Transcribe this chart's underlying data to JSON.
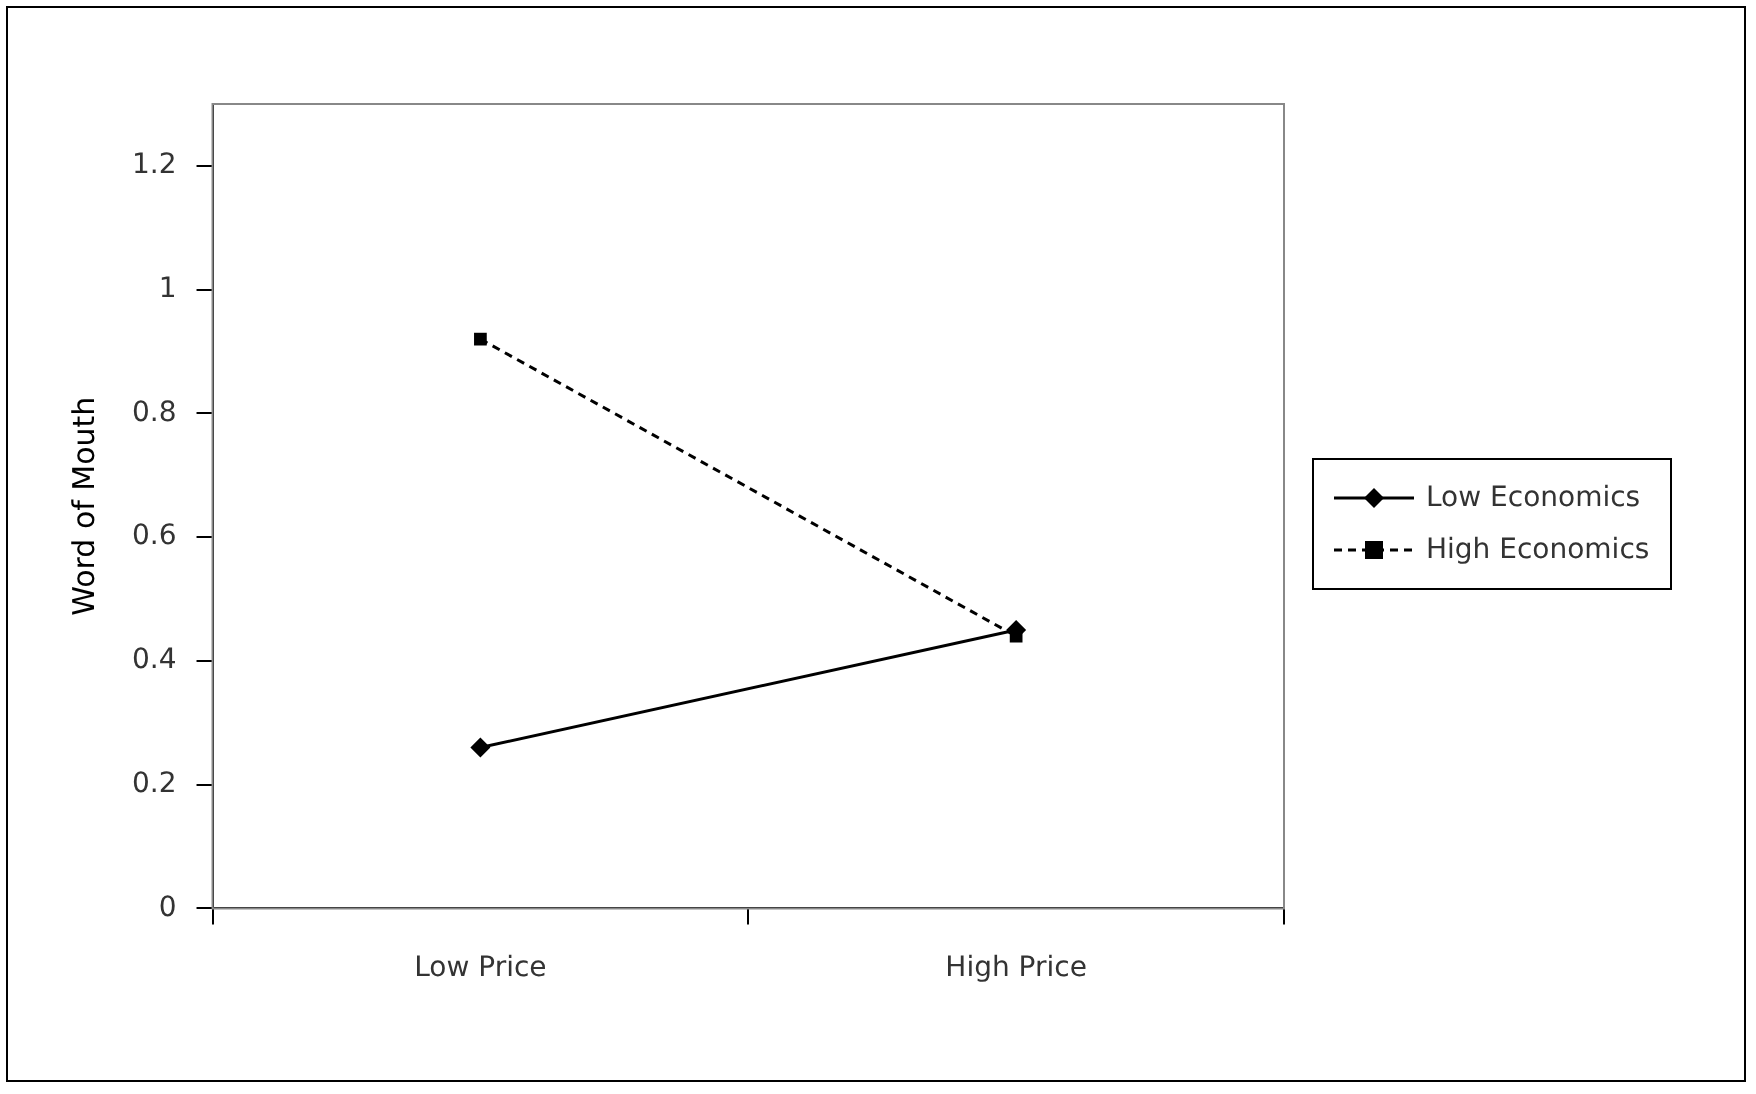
{
  "chart_data": {
    "type": "line",
    "ylabel": "Word of Mouth",
    "categories": [
      "Low Price",
      "High Price"
    ],
    "series": [
      {
        "name": "Low Economics",
        "color": "#000000",
        "values": [
          0.26,
          0.45
        ],
        "marker": "diamond",
        "line_style": "solid"
      },
      {
        "name": "High Economics",
        "color": "#000000",
        "values": [
          0.92,
          0.44
        ],
        "marker": "square",
        "line_style": "dashed"
      }
    ],
    "ylim": [
      0,
      1.3
    ],
    "yticks": [
      0,
      0.2,
      0.4,
      0.6,
      0.8,
      1,
      1.2
    ],
    "grid": false,
    "legend": "right"
  }
}
